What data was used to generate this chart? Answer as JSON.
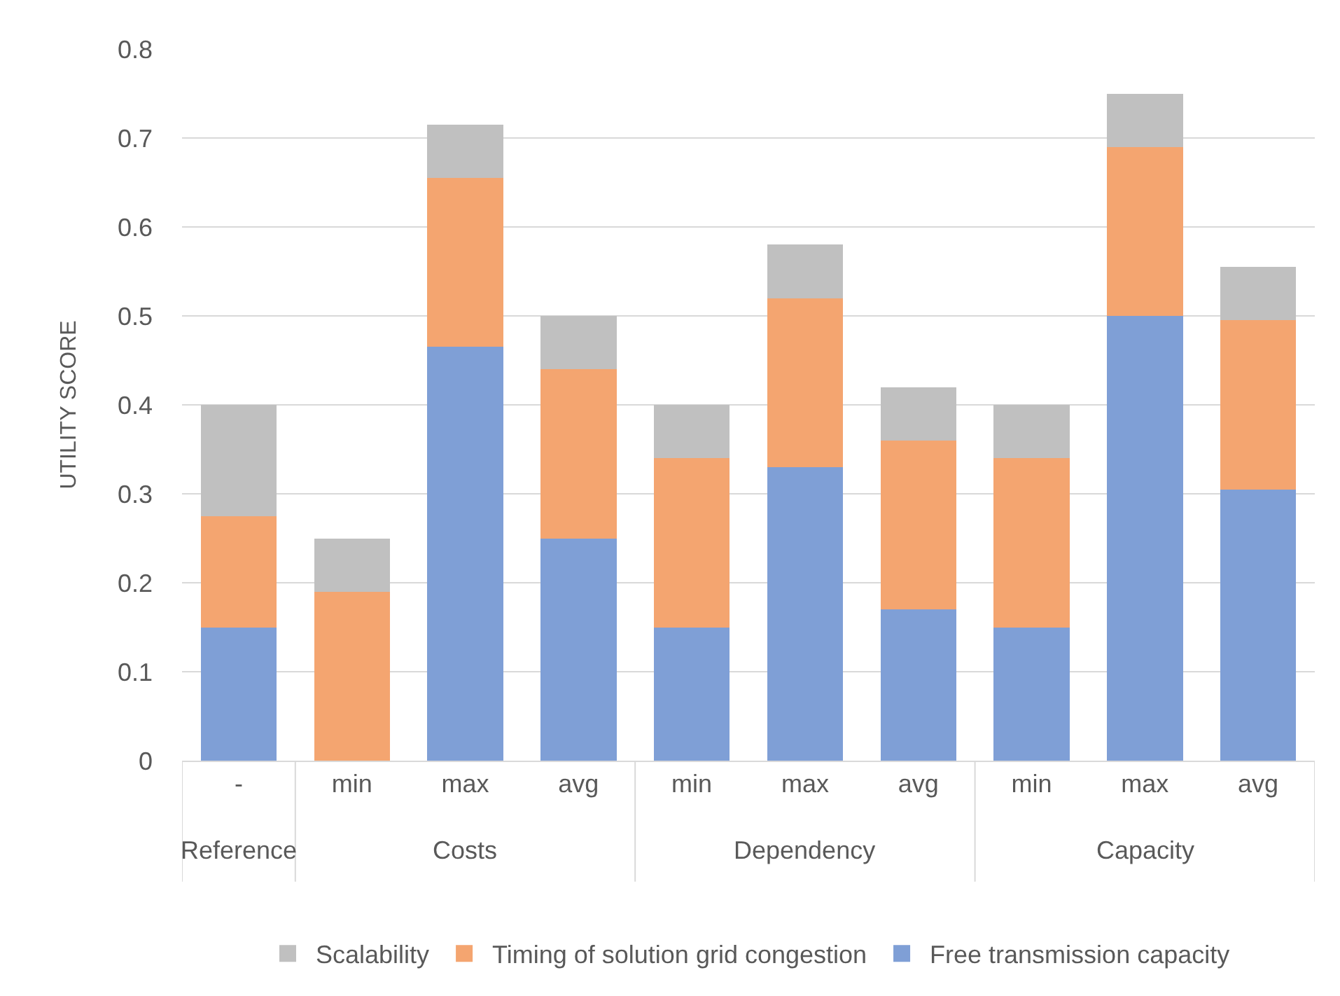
{
  "chart_data": {
    "type": "bar",
    "stacked": true,
    "ylabel": "UTILITY SCORE",
    "categories": [
      "-",
      "min",
      "max",
      "avg",
      "min",
      "max",
      "avg",
      "min",
      "max",
      "avg"
    ],
    "series": [
      {
        "name": "Free transmission capacity",
        "color": "#7f9fd6",
        "values": [
          0.15,
          0,
          0.465,
          0.25,
          0.15,
          0.33,
          0.17,
          0.15,
          0.5,
          0.305
        ]
      },
      {
        "name": "Timing of solution grid congestion",
        "color": "#f4a570",
        "values": [
          0.125,
          0.19,
          0.19,
          0.19,
          0.19,
          0.19,
          0.19,
          0.19,
          0.19,
          0.19
        ]
      },
      {
        "name": "Scalability",
        "color": "#c0c0c0",
        "values": [
          0.125,
          0.06,
          0.06,
          0.06,
          0.06,
          0.06,
          0.06,
          0.06,
          0.06,
          0.06
        ]
      }
    ],
    "annotations": [
      "Reference",
      "Costs",
      "Dependency",
      "Capacity"
    ],
    "ylim": [
      0,
      0.8
    ],
    "yticks": [
      0,
      0.1,
      0.2,
      0.3,
      0.4,
      0.5,
      0.6,
      0.7,
      0.8
    ],
    "grid": "y",
    "legend": "bottom"
  }
}
